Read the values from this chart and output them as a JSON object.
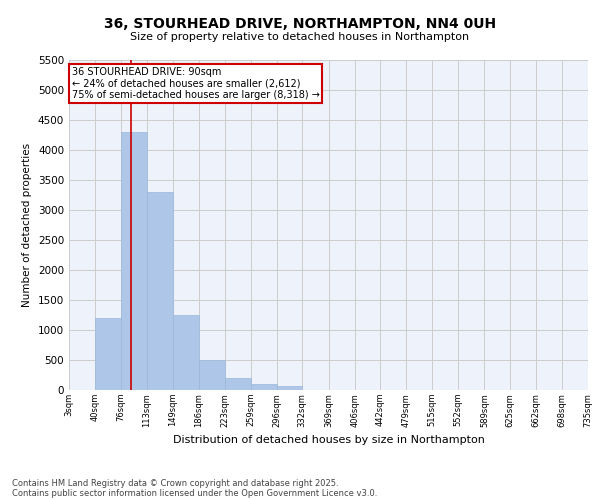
{
  "title_line1": "36, STOURHEAD DRIVE, NORTHAMPTON, NN4 0UH",
  "title_line2": "Size of property relative to detached houses in Northampton",
  "xlabel": "Distribution of detached houses by size in Northampton",
  "ylabel": "Number of detached properties",
  "footer_line1": "Contains HM Land Registry data © Crown copyright and database right 2025.",
  "footer_line2": "Contains public sector information licensed under the Open Government Licence v3.0.",
  "annotation_line1": "36 STOURHEAD DRIVE: 90sqm",
  "annotation_line2": "← 24% of detached houses are smaller (2,612)",
  "annotation_line3": "75% of semi-detached houses are larger (8,318) →",
  "property_size": 90,
  "bins": [
    3,
    40,
    76,
    113,
    149,
    186,
    223,
    259,
    296,
    332,
    369,
    406,
    442,
    479,
    515,
    552,
    589,
    625,
    662,
    698,
    735
  ],
  "counts": [
    0,
    1200,
    4300,
    3300,
    1250,
    500,
    200,
    100,
    70,
    0,
    0,
    0,
    0,
    0,
    0,
    0,
    0,
    0,
    0,
    0
  ],
  "bar_color": "#aec6e8",
  "bar_edge_color": "#9ab8d8",
  "vline_color": "#cc0000",
  "vline_x": 90,
  "annotation_box_color": "#cc0000",
  "ylim": [
    0,
    5500
  ],
  "yticks": [
    0,
    500,
    1000,
    1500,
    2000,
    2500,
    3000,
    3500,
    4000,
    4500,
    5000,
    5500
  ],
  "grid_color": "#cccccc",
  "background_color": "#eef2fa",
  "fig_background": "#ffffff"
}
